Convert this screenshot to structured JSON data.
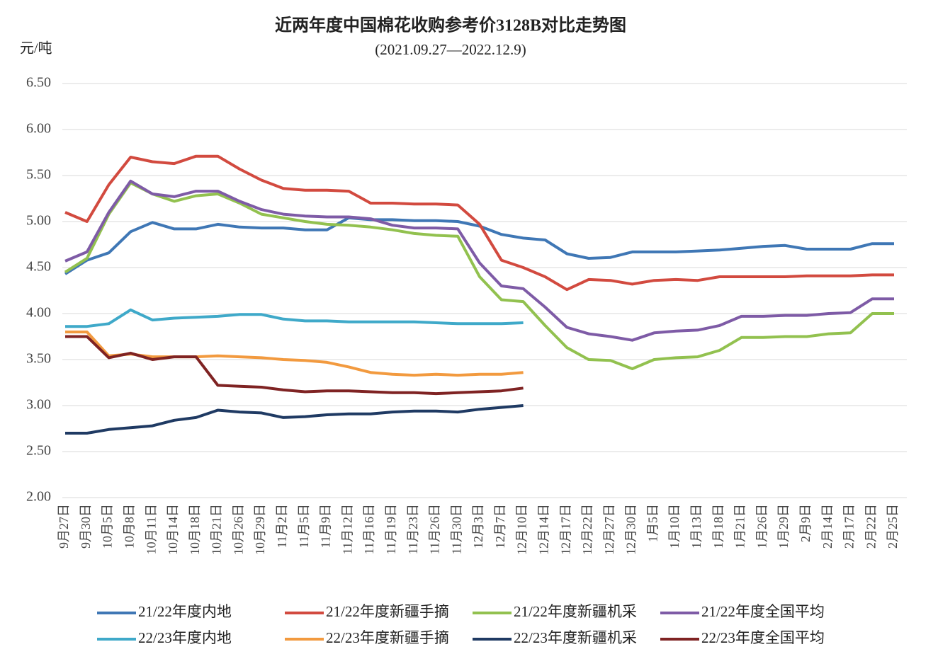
{
  "chart_data": {
    "type": "line",
    "title": "近两年度中国棉花收购参考价3128B对比走势图",
    "subtitle": "(2021.09.27—2022.12.9)",
    "y_label": "元/吨",
    "categories": [
      "9月27日",
      "9月30日",
      "10月5日",
      "10月8日",
      "10月11日",
      "10月14日",
      "10月18日",
      "10月21日",
      "10月26日",
      "10月29日",
      "11月2日",
      "11月5日",
      "11月9日",
      "11月12日",
      "11月16日",
      "11月19日",
      "11月23日",
      "11月26日",
      "11月30日",
      "12月3日",
      "12月7日",
      "12月10日",
      "12月14日",
      "12月17日",
      "12月22日",
      "12月27日",
      "12月30日",
      "1月5日",
      "1月10日",
      "1月13日",
      "1月18日",
      "1月21日",
      "1月26日",
      "1月29日",
      "2月9日",
      "2月14日",
      "2月17日",
      "2月22日",
      "2月25日"
    ],
    "ylim": [
      2.0,
      6.5
    ],
    "yticks": [
      {
        "value": 2.0,
        "label": "2.00"
      },
      {
        "value": 2.5,
        "label": "2.50"
      },
      {
        "value": 3.0,
        "label": "3.00"
      },
      {
        "value": 3.5,
        "label": "3.50"
      },
      {
        "value": 4.0,
        "label": "4.00"
      },
      {
        "value": 4.5,
        "label": "4.50"
      },
      {
        "value": 5.0,
        "label": "5.00"
      },
      {
        "value": 5.5,
        "label": "5.50"
      },
      {
        "value": 6.0,
        "label": "6.00"
      },
      {
        "value": 6.5,
        "label": "6.50"
      }
    ],
    "grid": true,
    "legend": "bottom",
    "series": [
      {
        "name": "21/22年度内地",
        "color": "#3f77b5",
        "values": [
          4.43,
          4.58,
          4.66,
          4.89,
          4.99,
          4.92,
          4.92,
          4.97,
          4.94,
          4.93,
          4.93,
          4.91,
          4.91,
          5.04,
          5.02,
          5.02,
          5.01,
          5.01,
          5.0,
          4.95,
          4.86,
          4.82,
          4.8,
          4.65,
          4.6,
          4.61,
          4.67,
          4.67,
          4.67,
          4.68,
          4.69,
          4.71,
          4.73,
          4.74,
          4.7,
          4.7,
          4.7,
          4.76,
          4.76
        ]
      },
      {
        "name": "21/22年度新疆手摘",
        "color": "#d24a3f",
        "values": [
          5.1,
          5.0,
          5.4,
          5.7,
          5.65,
          5.63,
          5.71,
          5.71,
          5.57,
          5.45,
          5.36,
          5.34,
          5.34,
          5.33,
          5.2,
          5.2,
          5.19,
          5.19,
          5.18,
          4.97,
          4.58,
          4.5,
          4.4,
          4.26,
          4.37,
          4.36,
          4.32,
          4.36,
          4.37,
          4.36,
          4.4,
          4.4,
          4.4,
          4.4,
          4.41,
          4.41,
          4.41,
          4.42,
          4.42
        ]
      },
      {
        "name": "21/22年度新疆机采",
        "color": "#92c14f",
        "values": [
          4.45,
          4.6,
          5.08,
          5.42,
          5.3,
          5.22,
          5.28,
          5.3,
          5.2,
          5.08,
          5.04,
          5.0,
          4.97,
          4.96,
          4.94,
          4.91,
          4.87,
          4.85,
          4.84,
          4.4,
          4.15,
          4.13,
          3.87,
          3.63,
          3.5,
          3.49,
          3.4,
          3.5,
          3.52,
          3.53,
          3.6,
          3.74,
          3.74,
          3.75,
          3.75,
          3.78,
          3.79,
          4.0,
          4.0
        ]
      },
      {
        "name": "21/22年度全国平均",
        "color": "#7e5ba6",
        "values": [
          4.57,
          4.67,
          5.1,
          5.44,
          5.3,
          5.27,
          5.33,
          5.33,
          5.22,
          5.13,
          5.08,
          5.06,
          5.05,
          5.05,
          5.03,
          4.96,
          4.93,
          4.93,
          4.92,
          4.55,
          4.3,
          4.27,
          4.07,
          3.85,
          3.78,
          3.75,
          3.71,
          3.79,
          3.81,
          3.82,
          3.87,
          3.97,
          3.97,
          3.98,
          3.98,
          4.0,
          4.01,
          4.16,
          4.16
        ]
      },
      {
        "name": "22/23年度内地",
        "color": "#3fa9c9",
        "values": [
          3.86,
          3.86,
          3.89,
          4.04,
          3.93,
          3.95,
          3.96,
          3.97,
          3.99,
          3.99,
          3.94,
          3.92,
          3.92,
          3.91,
          3.91,
          3.91,
          3.91,
          3.9,
          3.89,
          3.89,
          3.89,
          3.9,
          null,
          null,
          null,
          null,
          null,
          null,
          null,
          null,
          null,
          null,
          null,
          null,
          null,
          null,
          null,
          null,
          null
        ]
      },
      {
        "name": "22/23年度新疆手摘",
        "color": "#f29a3f",
        "values": [
          3.8,
          3.8,
          3.54,
          3.56,
          3.53,
          3.53,
          3.53,
          3.54,
          3.53,
          3.52,
          3.5,
          3.49,
          3.47,
          3.42,
          3.36,
          3.34,
          3.33,
          3.34,
          3.33,
          3.34,
          3.34,
          3.36,
          null,
          null,
          null,
          null,
          null,
          null,
          null,
          null,
          null,
          null,
          null,
          null,
          null,
          null,
          null,
          null,
          null
        ]
      },
      {
        "name": "22/23年度新疆机采",
        "color": "#1f3a63",
        "values": [
          2.7,
          2.7,
          2.74,
          2.76,
          2.78,
          2.84,
          2.87,
          2.95,
          2.93,
          2.92,
          2.87,
          2.88,
          2.9,
          2.91,
          2.91,
          2.93,
          2.94,
          2.94,
          2.93,
          2.96,
          2.98,
          3.0,
          null,
          null,
          null,
          null,
          null,
          null,
          null,
          null,
          null,
          null,
          null,
          null,
          null,
          null,
          null,
          null,
          null
        ]
      },
      {
        "name": "22/23年度全国平均",
        "color": "#7f2323",
        "values": [
          3.75,
          3.75,
          3.52,
          3.57,
          3.5,
          3.53,
          3.53,
          3.22,
          3.21,
          3.2,
          3.17,
          3.15,
          3.16,
          3.16,
          3.15,
          3.14,
          3.14,
          3.13,
          3.14,
          3.15,
          3.16,
          3.19,
          null,
          null,
          null,
          null,
          null,
          null,
          null,
          null,
          null,
          null,
          null,
          null,
          null,
          null,
          null,
          null,
          null
        ]
      }
    ]
  }
}
